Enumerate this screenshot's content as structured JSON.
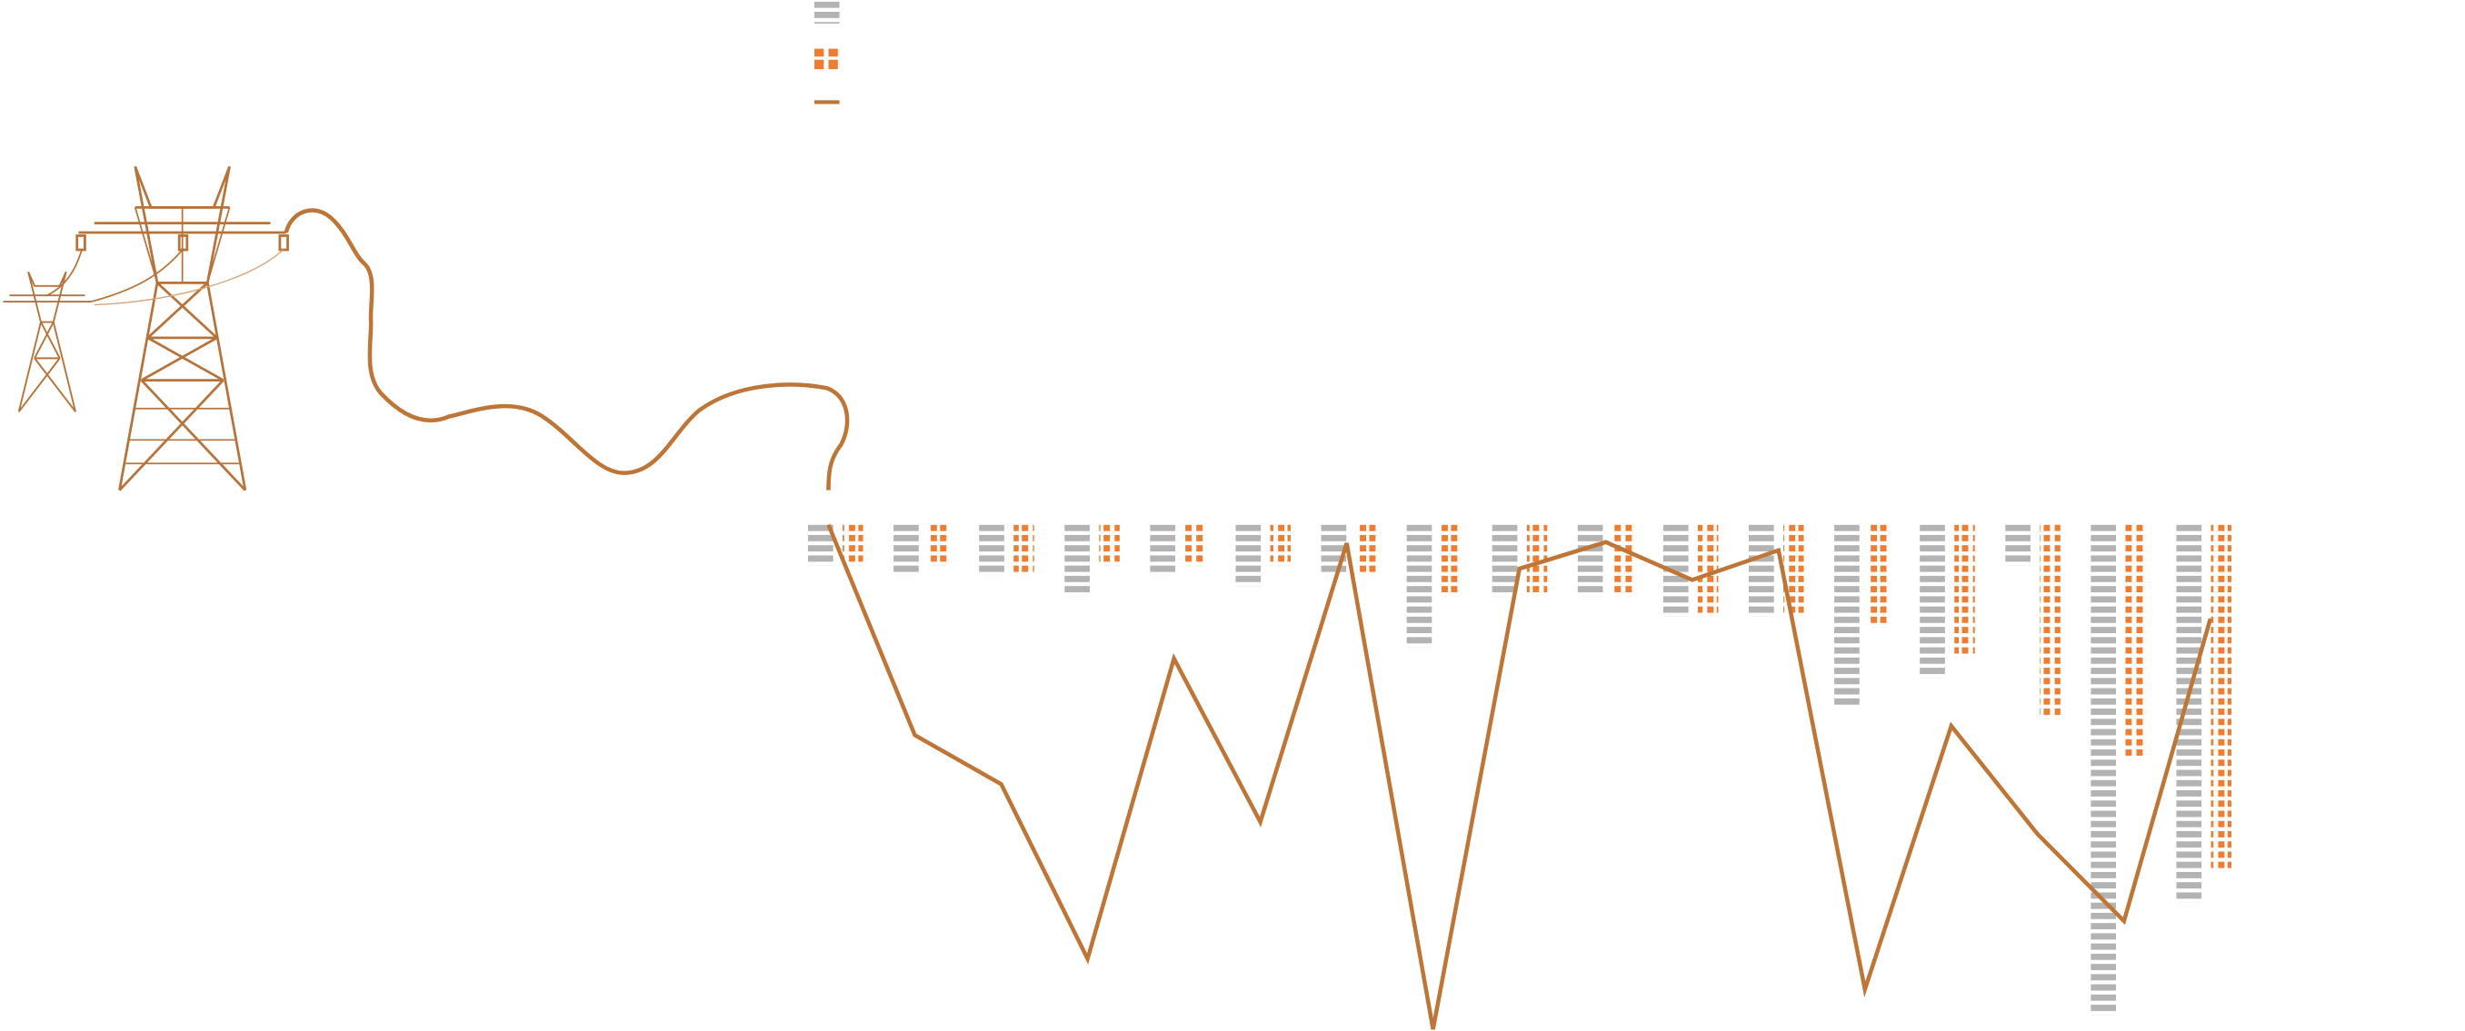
{
  "chart_data": {
    "type": "combo",
    "categories": [
      null,
      null,
      null,
      null,
      null,
      null,
      null,
      null,
      null,
      null,
      null,
      null,
      null,
      null,
      null,
      null,
      null
    ],
    "ylim": [
      0,
      50
    ],
    "y_inverted": true,
    "series": [
      {
        "type": "bar",
        "pattern": "dash",
        "color": "#b3b3b3",
        "values": [
          4,
          5,
          5,
          7,
          5,
          6,
          5,
          12,
          7,
          7,
          9,
          9,
          18,
          15,
          4,
          48,
          37
        ]
      },
      {
        "type": "bar",
        "pattern": "dot",
        "color": "#ed7d31",
        "values": [
          4,
          4,
          5,
          4,
          4,
          4,
          5,
          7,
          7,
          7,
          9,
          9,
          10,
          13,
          19,
          23,
          34
        ]
      },
      {
        "type": "line",
        "color": "#bf7535",
        "values": [
          0,
          20.6,
          25.4,
          42.5,
          13.1,
          29.1,
          1.8,
          49.4,
          4.3,
          1.7,
          5.4,
          2.5,
          45.5,
          19.7,
          30.3,
          38.8,
          9.2
        ]
      }
    ]
  }
}
